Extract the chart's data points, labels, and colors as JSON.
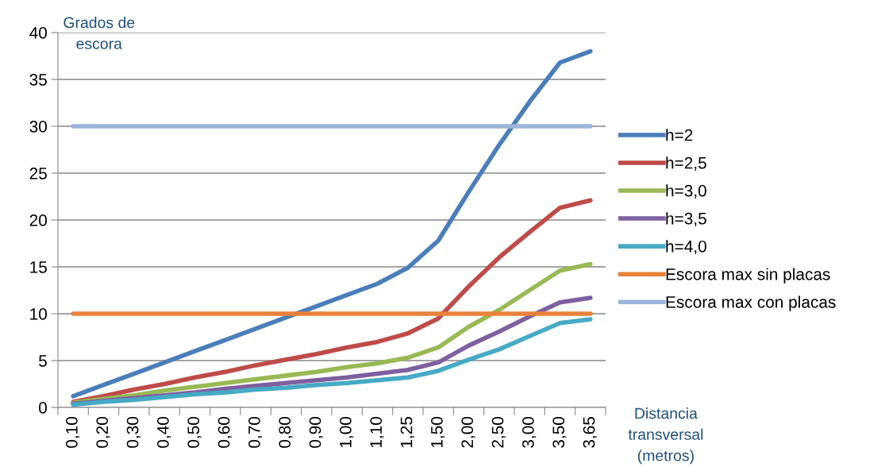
{
  "chart_data": {
    "type": "line",
    "ylabel": "Grados de escora",
    "xlabel": "Distancia transversal (metros)",
    "categories": [
      "0,10",
      "0,20",
      "0,30",
      "0,40",
      "0,50",
      "0,60",
      "0,70",
      "0,80",
      "0,90",
      "1,00",
      "1,10",
      "1,25",
      "1,50",
      "2,00",
      "2,50",
      "3,00",
      "3,50",
      "3,65"
    ],
    "series": [
      {
        "name": "h=2",
        "color": "#4a7ebb",
        "values": [
          1.2,
          2.4,
          3.6,
          4.8,
          6.0,
          7.2,
          8.4,
          9.6,
          10.8,
          12.0,
          13.2,
          14.9,
          17.8,
          23.0,
          28.0,
          32.6,
          36.8,
          38.0
        ]
      },
      {
        "name": "h=2,5",
        "color": "#be4b48",
        "values": [
          0.6,
          1.2,
          1.9,
          2.5,
          3.2,
          3.8,
          4.5,
          5.1,
          5.7,
          6.4,
          7.0,
          7.9,
          9.5,
          12.9,
          16.0,
          18.7,
          21.3,
          22.1
        ]
      },
      {
        "name": "h=3,0",
        "color": "#98b954",
        "values": [
          0.5,
          0.9,
          1.3,
          1.8,
          2.2,
          2.6,
          3.0,
          3.4,
          3.8,
          4.3,
          4.7,
          5.3,
          6.4,
          8.6,
          10.4,
          12.5,
          14.6,
          15.3
        ]
      },
      {
        "name": "h=3,5",
        "color": "#7d60a0",
        "values": [
          0.4,
          0.7,
          1.0,
          1.3,
          1.6,
          2.0,
          2.3,
          2.6,
          2.9,
          3.2,
          3.6,
          4.0,
          4.8,
          6.6,
          8.1,
          9.7,
          11.2,
          11.7
        ]
      },
      {
        "name": "h=4,0",
        "color": "#46aac5",
        "values": [
          0.3,
          0.6,
          0.8,
          1.1,
          1.4,
          1.6,
          1.9,
          2.1,
          2.4,
          2.6,
          2.9,
          3.2,
          3.9,
          5.1,
          6.2,
          7.6,
          9.0,
          9.4
        ]
      },
      {
        "name": "Escora max sin placas",
        "color": "#e8823a",
        "values": [
          10,
          10,
          10,
          10,
          10,
          10,
          10,
          10,
          10,
          10,
          10,
          10,
          10,
          10,
          10,
          10,
          10,
          10
        ]
      },
      {
        "name": "Escora max con placas",
        "color": "#9bb5dc",
        "values": [
          30,
          30,
          30,
          30,
          30,
          30,
          30,
          30,
          30,
          30,
          30,
          30,
          30,
          30,
          30,
          30,
          30,
          30
        ]
      }
    ],
    "ylim": [
      0,
      40
    ],
    "yticks": [
      0,
      5,
      10,
      15,
      20,
      25,
      30,
      35,
      40
    ],
    "grid": "y",
    "legend": "right",
    "marker": "none",
    "line_style": "solid"
  }
}
